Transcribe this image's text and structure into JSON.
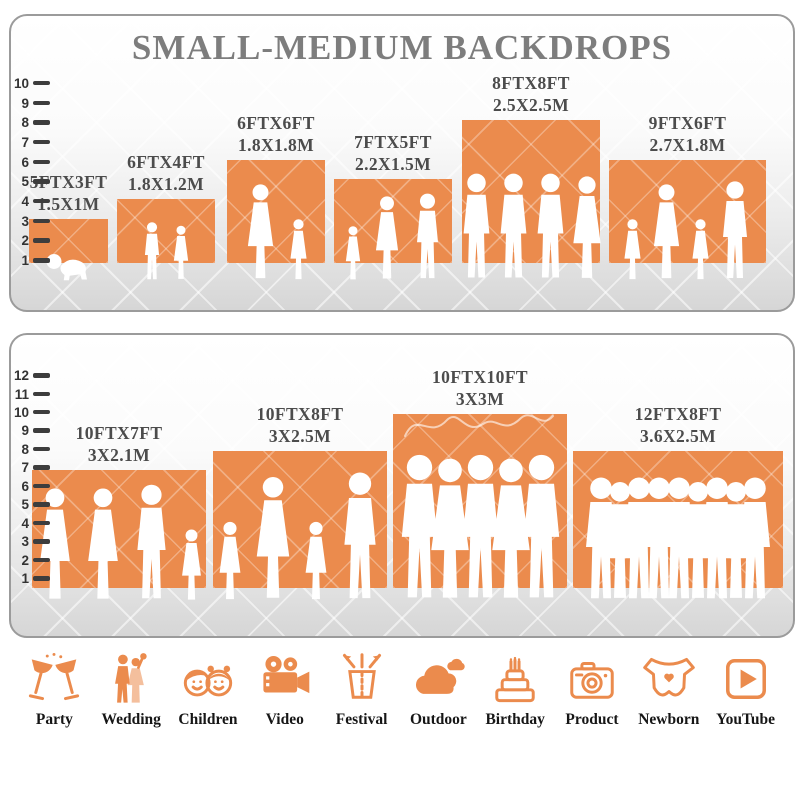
{
  "title": "SMALL-MEDIUM BACKDROPS",
  "accent_color": "#EB8B4D",
  "chart_data": [
    {
      "type": "bar",
      "panel": "small-medium",
      "title": "SMALL-MEDIUM BACKDROPS",
      "ylabel": "feet",
      "ylim": [
        0,
        10
      ],
      "grid": false,
      "axis_ticks": [
        10,
        9,
        8,
        7,
        6,
        5,
        4,
        3,
        2,
        1
      ],
      "bars": [
        {
          "size_ft": "5FTX3FT",
          "size_m": "1.5X1M",
          "width_ft": 5,
          "height_ft": 3,
          "people": [
            "baby"
          ]
        },
        {
          "size_ft": "6FTX4FT",
          "size_m": "1.8X1.2M",
          "width_ft": 6,
          "height_ft": 4,
          "people": [
            "boy",
            "girl"
          ]
        },
        {
          "size_ft": "6FTX6FT",
          "size_m": "1.8X1.8M",
          "width_ft": 6,
          "height_ft": 6,
          "people": [
            "woman",
            "girl"
          ]
        },
        {
          "size_ft": "7FTX5FT",
          "size_m": "2.2X1.5M",
          "width_ft": 7,
          "height_ft": 5,
          "people": [
            "girl",
            "woman",
            "man"
          ]
        },
        {
          "size_ft": "8FTX8FT",
          "size_m": "2.5X2.5M",
          "width_ft": 8,
          "height_ft": 8,
          "people": [
            "man",
            "man",
            "man",
            "woman"
          ]
        },
        {
          "size_ft": "9FTX6FT",
          "size_m": "2.7X1.8M",
          "width_ft": 9,
          "height_ft": 6,
          "people": [
            "girl",
            "woman",
            "girl",
            "man"
          ]
        }
      ]
    },
    {
      "type": "bar",
      "panel": "medium-large",
      "ylabel": "feet",
      "ylim": [
        0,
        12
      ],
      "grid": false,
      "axis_ticks": [
        12,
        11,
        10,
        9,
        8,
        7,
        6,
        5,
        4,
        3,
        2,
        1
      ],
      "bars": [
        {
          "size_ft": "10FTX7FT",
          "size_m": "3X2.1M",
          "width_ft": 10,
          "height_ft": 7,
          "people": [
            "woman",
            "woman",
            "man",
            "girl"
          ]
        },
        {
          "size_ft": "10FTX8FT",
          "size_m": "3X2.5M",
          "width_ft": 10,
          "height_ft": 8,
          "people": [
            "girl",
            "woman",
            "girl",
            "man"
          ]
        },
        {
          "size_ft": "10FTX10FT",
          "size_m": "3X3M",
          "width_ft": 10,
          "height_ft": 10,
          "people": [
            "man",
            "woman",
            "man",
            "woman",
            "man"
          ]
        },
        {
          "size_ft": "12FTX8FT",
          "size_m": "3.6X2.5M",
          "width_ft": 12,
          "height_ft": 8,
          "people": [
            "man",
            "woman",
            "man",
            "man",
            "man",
            "woman",
            "man",
            "woman",
            "man"
          ]
        }
      ]
    }
  ],
  "categories": [
    {
      "icon": "party-icon",
      "label": "Party"
    },
    {
      "icon": "wedding-icon",
      "label": "Wedding"
    },
    {
      "icon": "children-icon",
      "label": "Children"
    },
    {
      "icon": "video-icon",
      "label": "Video"
    },
    {
      "icon": "festival-icon",
      "label": "Festival"
    },
    {
      "icon": "outdoor-icon",
      "label": "Outdoor"
    },
    {
      "icon": "birthday-icon",
      "label": "Birthday"
    },
    {
      "icon": "product-icon",
      "label": "Product"
    },
    {
      "icon": "newborn-icon",
      "label": "Newborn"
    },
    {
      "icon": "youtube-icon",
      "label": "YouTube"
    }
  ]
}
